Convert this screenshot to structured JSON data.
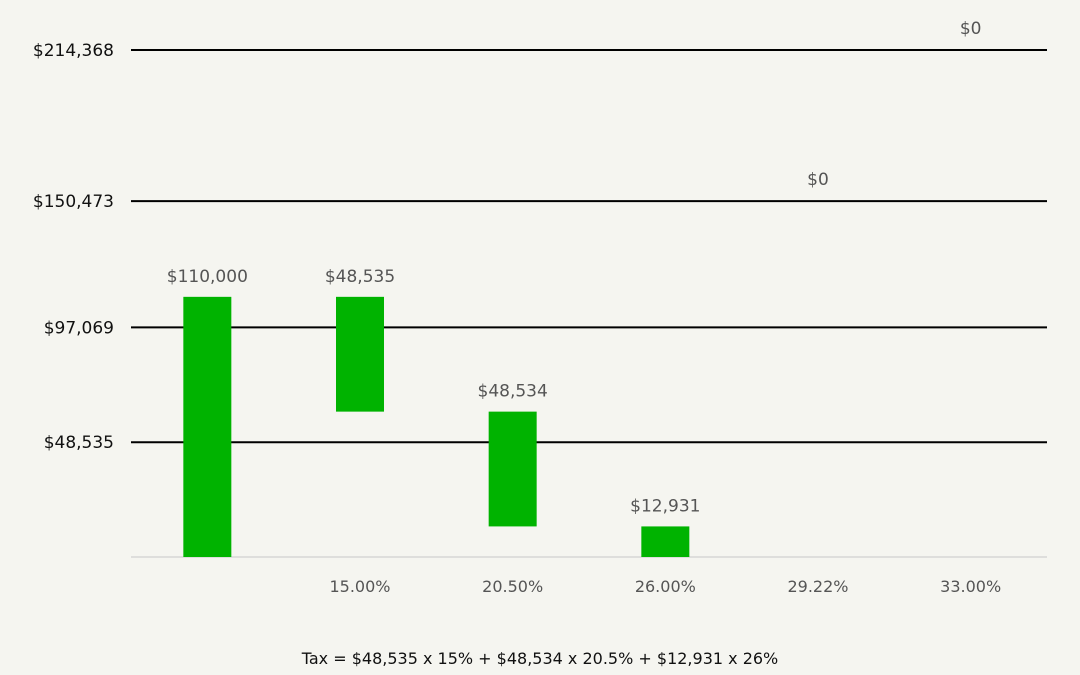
{
  "chart_data": {
    "type": "bar",
    "subtype": "waterfall",
    "categories": [
      "",
      "15.00%",
      "20.50%",
      "26.00%",
      "29.22%",
      "33.00%"
    ],
    "values": [
      110000,
      48535,
      48534,
      12931,
      0,
      0
    ],
    "data_labels": [
      "$110,000",
      "$48,535",
      "$48,534",
      "$12,931",
      "$0",
      "$0"
    ],
    "bracket_thresholds": [
      48535,
      97069,
      150473,
      214368
    ],
    "bracket_labels": [
      "$48,535",
      "$97,069",
      "$150,473",
      "$214,368"
    ],
    "ylim": [
      0,
      214368
    ],
    "bar_color": "#00b300",
    "line_color": "#000000",
    "title": "",
    "xlabel": "",
    "ylabel": "",
    "legend": "none",
    "grid": false
  },
  "footer": {
    "formula": "Tax = $48,535 x 15% + $48,534 x 20.5% + $12,931 x 26%"
  }
}
